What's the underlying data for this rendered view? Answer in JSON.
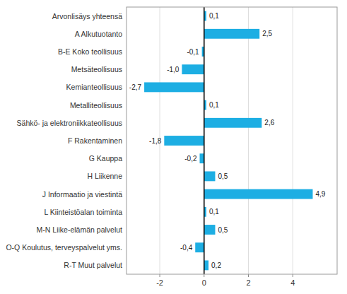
{
  "chart_data": {
    "type": "bar",
    "orientation": "horizontal",
    "categories": [
      "Arvonlisäys yhteensä",
      "A Alkutuotanto",
      "B-E Koko teollisuus",
      "Metsäteollisuus",
      "Kemianteollisuus",
      "Metalliteollisuus",
      "Sähkö- ja elektroniikkateollisuus",
      "F Rakentaminen",
      "G Kauppa",
      "H Liikenne",
      "J Informaatio ja viestintä",
      "L Kiinteistöalan toiminta",
      "M-N Liike-elämän palvelut",
      "O-Q Koulutus, terveyspalvelut yms.",
      "R-T Muut palvelut"
    ],
    "values": [
      0.1,
      2.5,
      -0.1,
      -1.0,
      -2.7,
      0.1,
      2.6,
      -1.8,
      -0.2,
      0.5,
      4.9,
      0.1,
      0.5,
      -0.4,
      0.2
    ],
    "value_labels": [
      "0,1",
      "2,5",
      "-0,1",
      "-1,0",
      "-2,7",
      "0,1",
      "2,6",
      "-1,8",
      "-0,2",
      "0,5",
      "4,9",
      "0,1",
      "0,5",
      "-0,4",
      "0,2"
    ],
    "data_labels": true,
    "color": "#1daee3",
    "xlim": [
      -3.5,
      6.0
    ],
    "xticks": [
      -2,
      0,
      2,
      4
    ],
    "grid": true
  }
}
